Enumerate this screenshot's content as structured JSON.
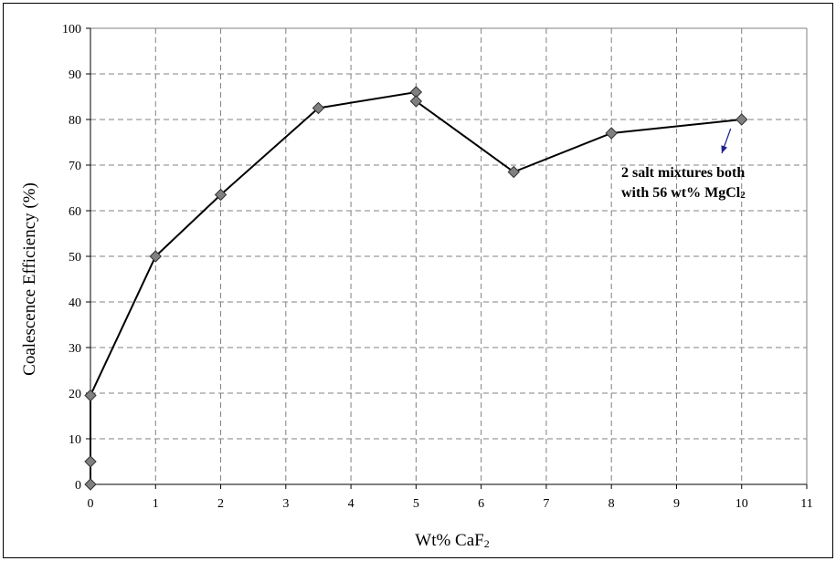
{
  "chart_data": {
    "type": "line",
    "xlabel": "Wt% CaF",
    "xlabel_sub": "2",
    "ylabel": "Coalescence Efficiency (%)",
    "xlim": [
      0,
      11
    ],
    "ylim": [
      0,
      100
    ],
    "xticks": [
      "0",
      "1",
      "2",
      "3",
      "4",
      "5",
      "6",
      "7",
      "8",
      "9",
      "10",
      "11"
    ],
    "yticks": [
      "0",
      "10",
      "20",
      "30",
      "40",
      "50",
      "60",
      "70",
      "80",
      "90",
      "100"
    ],
    "grid": true,
    "marker": "diamond",
    "line_color": "#000000",
    "marker_color": "#808080",
    "series": [
      {
        "x": [
          0,
          0,
          0,
          1,
          2,
          3.5,
          5,
          5,
          6.5,
          8,
          10
        ],
        "y": [
          0,
          5,
          19.5,
          50,
          63.5,
          82.5,
          86,
          84,
          68.5,
          77,
          80
        ]
      }
    ],
    "annotation": {
      "line1": "2 salt mixtures both",
      "line2": "with 56 wt% MgCl",
      "line2_sub": "2",
      "arrow_color": "#1f1f8f"
    }
  }
}
